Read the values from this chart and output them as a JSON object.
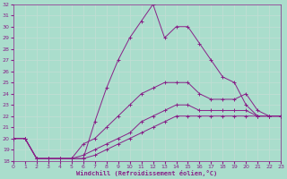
{
  "xlabel": "Windchill (Refroidissement éolien,°C)",
  "background_color": "#aaddcc",
  "grid_color": "#bbddcc",
  "line_color": "#882288",
  "xlim": [
    0,
    23
  ],
  "ylim": [
    18,
    32
  ],
  "xticks": [
    0,
    1,
    2,
    3,
    4,
    5,
    6,
    7,
    8,
    9,
    10,
    11,
    12,
    13,
    14,
    15,
    16,
    17,
    18,
    19,
    20,
    21,
    22,
    23
  ],
  "yticks": [
    18,
    19,
    20,
    21,
    22,
    23,
    24,
    25,
    26,
    27,
    28,
    29,
    30,
    31,
    32
  ],
  "lines": [
    [
      20.0,
      20.0,
      18.2,
      18.2,
      18.2,
      18.2,
      18.2,
      21.5,
      24.5,
      27.0,
      29.0,
      30.5,
      32.0,
      29.0,
      30.0,
      30.0,
      28.5,
      27.0,
      25.5,
      25.0,
      23.0,
      22.0,
      22.0,
      22.0
    ],
    [
      20.0,
      20.0,
      18.2,
      18.2,
      18.2,
      18.2,
      19.5,
      20.0,
      21.0,
      22.0,
      23.0,
      24.0,
      24.5,
      25.0,
      25.0,
      25.0,
      24.0,
      23.5,
      23.5,
      23.5,
      24.0,
      22.5,
      22.0,
      22.0
    ],
    [
      20.0,
      20.0,
      18.2,
      18.2,
      18.2,
      18.2,
      18.5,
      19.0,
      19.5,
      20.0,
      20.5,
      21.5,
      22.0,
      22.5,
      23.0,
      23.0,
      22.5,
      22.5,
      22.5,
      22.5,
      22.5,
      22.0,
      22.0,
      22.0
    ],
    [
      20.0,
      20.0,
      18.2,
      18.2,
      18.2,
      18.2,
      18.2,
      18.5,
      19.0,
      19.5,
      20.0,
      20.5,
      21.0,
      21.5,
      22.0,
      22.0,
      22.0,
      22.0,
      22.0,
      22.0,
      22.0,
      22.0,
      22.0,
      22.0
    ]
  ]
}
